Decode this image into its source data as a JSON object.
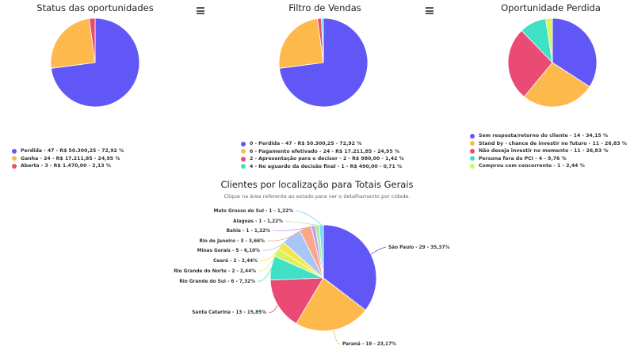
{
  "toolbar": {
    "menu_icon": "hamburger-menu-icon"
  },
  "chart_data": [
    {
      "type": "pie",
      "title": "Status das oportunidades",
      "legend_placement": "bottom",
      "series": [
        {
          "name": "",
          "values": [
            72.92,
            24.95,
            2.13
          ]
        }
      ],
      "categories": [
        "Perdida",
        "Ganha",
        "Aberta"
      ],
      "colors": [
        "#6157f6",
        "#fdb94b",
        "#ea4b74"
      ],
      "legend": [
        "Perdida - 47 - R$ 50.300,25 - 72,92 %",
        "Ganha - 24 - R$ 17.211,85 - 24,95 %",
        "Aberta - 3 - R$ 1.470,00 - 2,13 %"
      ]
    },
    {
      "type": "pie",
      "title": "Filtro de Vendas",
      "legend_placement": "bottom",
      "series": [
        {
          "name": "",
          "values": [
            72.92,
            24.95,
            1.42,
            0.71
          ]
        }
      ],
      "categories": [
        "0 - Perdida",
        "6 - Pagamento efetivado",
        "2 - Apresentação para o decisor",
        "4 - No aguardo da decisão final"
      ],
      "colors": [
        "#6157f6",
        "#fdb94b",
        "#ea4b74",
        "#3fe0c5"
      ],
      "legend": [
        "0 - Perdida - 47 - R$ 50.300,25 - 72,92 %",
        "6 - Pagamento efetivado - 24 - R$ 17.211,85 - 24,95 %",
        "2 - Apresentação para o decisor - 2 - R$ 980,00 - 1,42 %",
        "4 - No aguardo da decisão final - 1 - R$ 490,00 - 0,71 %"
      ]
    },
    {
      "type": "pie",
      "title": "Oportunidade Perdida",
      "legend_placement": "bottom",
      "series": [
        {
          "name": "",
          "values": [
            34.15,
            26.83,
            26.83,
            9.76,
            2.44
          ]
        }
      ],
      "categories": [
        "Sem resposta/retorno do cliente",
        "Stand by - chance de investir no futuro",
        "Não deseja investir no momento",
        "Persona fora do PCI",
        "Comprou com concorrente"
      ],
      "colors": [
        "#6157f6",
        "#fdb94b",
        "#ea4b74",
        "#3fe0c5",
        "#d9f25e"
      ],
      "legend": [
        "Sem resposta/retorno do cliente - 14 - 34,15 %",
        "Stand by - chance de investir no futuro - 11 - 26,83 %",
        "Não deseja investir no momento - 11 - 26,83 %",
        "Persona fora do PCI - 4 - 9,76 %",
        "Comprou com concorrente - 1 - 2,44 %"
      ]
    },
    {
      "type": "pie",
      "title": "Clientes por localização para Totais Gerais",
      "subtitle": "Clique na área referente ao estado para ver o detalhamento por cidade.",
      "series": [
        {
          "name": "",
          "values": [
            35.37,
            23.17,
            15.85,
            7.32,
            2.44,
            2.44,
            6.1,
            3.66,
            1.22,
            1.22,
            1.22
          ]
        }
      ],
      "categories": [
        "São Paulo",
        "Paraná",
        "Santa Catarina",
        "Rio Grande do Sul",
        "Rio Grande do Norte",
        "Ceará",
        "Minas Gerais",
        "Rio de Janeiro",
        "Bahia",
        "Alagoas",
        "Mato Grosso do Sul"
      ],
      "colors": [
        "#6157f6",
        "#fdb94b",
        "#ea4b74",
        "#3fe0c5",
        "#d9f25e",
        "#f5e64a",
        "#a8c6f7",
        "#f9a98a",
        "#c49bf0",
        "#ade8a0",
        "#7ad7f7"
      ],
      "labels": [
        "São Paulo - 29 - 35,37%",
        "Paraná - 19 - 23,17%",
        "Santa Catarina - 13 - 15,85%",
        "Rio Grande do Sul - 6 - 7,32%",
        "Rio Grande do Norte - 2 - 2,44%",
        "Ceará - 2 - 2,44%",
        "Minas Gerais - 5 - 6,10%",
        "Rio de Janeiro - 3 - 3,66%",
        "Bahia - 1 - 1,22%",
        "Alagoas - 1 - 1,22%",
        "Mato Grosso do Sul - 1 - 1,22%"
      ]
    }
  ]
}
